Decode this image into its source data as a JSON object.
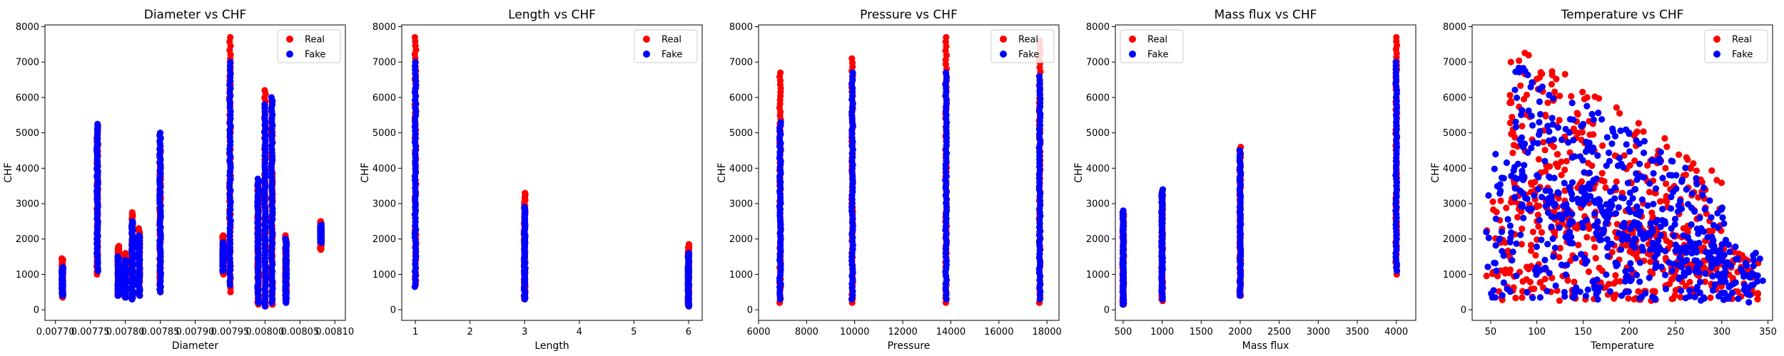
{
  "colors": {
    "real": "#ff0000",
    "fake": "#0000ff"
  },
  "legend_labels": [
    "Real",
    "Fake"
  ],
  "chart_data": [
    {
      "type": "scatter",
      "title": "Diameter vs CHF",
      "xlabel": "Diameter",
      "ylabel": "CHF",
      "xlim": [
        0.007685,
        0.008115
      ],
      "ylim": [
        -300,
        8050
      ],
      "xticks": [
        0.0077,
        0.00775,
        0.0078,
        0.00785,
        0.0079,
        0.00795,
        0.008,
        0.00805,
        0.0081
      ],
      "xtick_labels": [
        "0.00770",
        "0.00775",
        "0.00780",
        "0.00785",
        "0.00790",
        "0.00795",
        "0.00800",
        "0.00805",
        "0.00810"
      ],
      "yticks": [
        0,
        1000,
        2000,
        3000,
        4000,
        5000,
        6000,
        7000,
        8000
      ],
      "legend_loc": "top-right",
      "grid": false,
      "real_groups": [
        {
          "x": 0.00771,
          "ymin": 350,
          "ymax": 1450
        },
        {
          "x": 0.00776,
          "ymin": 1000,
          "ymax": 5200
        },
        {
          "x": 0.00779,
          "ymin": 400,
          "ymax": 1800
        },
        {
          "x": 0.0078,
          "ymin": 350,
          "ymax": 1600
        },
        {
          "x": 0.00781,
          "ymin": 300,
          "ymax": 2750
        },
        {
          "x": 0.00782,
          "ymin": 400,
          "ymax": 2300
        },
        {
          "x": 0.00785,
          "ymin": 500,
          "ymax": 4500
        },
        {
          "x": 0.00794,
          "ymin": 1000,
          "ymax": 2100
        },
        {
          "x": 0.00795,
          "ymin": 500,
          "ymax": 7700
        },
        {
          "x": 0.00799,
          "ymin": 150,
          "ymax": 3600
        },
        {
          "x": 0.008,
          "ymin": 100,
          "ymax": 6200
        },
        {
          "x": 0.00801,
          "ymin": 150,
          "ymax": 5900
        },
        {
          "x": 0.00803,
          "ymin": 200,
          "ymax": 2100
        },
        {
          "x": 0.00808,
          "ymin": 1700,
          "ymax": 2500
        }
      ],
      "fake_groups": [
        {
          "x": 0.00771,
          "ymin": 400,
          "ymax": 1200
        },
        {
          "x": 0.00776,
          "ymin": 1100,
          "ymax": 5250
        },
        {
          "x": 0.00779,
          "ymin": 400,
          "ymax": 1500
        },
        {
          "x": 0.0078,
          "ymin": 350,
          "ymax": 1400
        },
        {
          "x": 0.00781,
          "ymin": 300,
          "ymax": 2500
        },
        {
          "x": 0.00782,
          "ymin": 400,
          "ymax": 2100
        },
        {
          "x": 0.00785,
          "ymin": 500,
          "ymax": 5000
        },
        {
          "x": 0.00794,
          "ymin": 1100,
          "ymax": 1900
        },
        {
          "x": 0.00795,
          "ymin": 700,
          "ymax": 7000
        },
        {
          "x": 0.00799,
          "ymin": 200,
          "ymax": 3700
        },
        {
          "x": 0.008,
          "ymin": 100,
          "ymax": 5800
        },
        {
          "x": 0.00801,
          "ymin": 200,
          "ymax": 6000
        },
        {
          "x": 0.00803,
          "ymin": 200,
          "ymax": 2000
        },
        {
          "x": 0.00808,
          "ymin": 1900,
          "ymax": 2400
        }
      ]
    },
    {
      "type": "scatter",
      "title": "Length vs CHF",
      "xlabel": "Length",
      "ylabel": "CHF",
      "xlim": [
        0.75,
        6.25
      ],
      "ylim": [
        -300,
        8050
      ],
      "xticks": [
        1,
        2,
        3,
        4,
        5,
        6
      ],
      "xtick_labels": [
        "1",
        "2",
        "3",
        "4",
        "5",
        "6"
      ],
      "yticks": [
        0,
        1000,
        2000,
        3000,
        4000,
        5000,
        6000,
        7000,
        8000
      ],
      "legend_loc": "top-right",
      "grid": false,
      "real_groups": [
        {
          "x": 1,
          "ymin": 700,
          "ymax": 7700
        },
        {
          "x": 3,
          "ymin": 300,
          "ymax": 3300
        },
        {
          "x": 6,
          "ymin": 100,
          "ymax": 1850
        }
      ],
      "fake_groups": [
        {
          "x": 1,
          "ymin": 650,
          "ymax": 7000
        },
        {
          "x": 3,
          "ymin": 300,
          "ymax": 2900
        },
        {
          "x": 6,
          "ymin": 100,
          "ymax": 1600
        }
      ]
    },
    {
      "type": "scatter",
      "title": "Pressure vs CHF",
      "xlabel": "Pressure",
      "ylabel": "CHF",
      "xlim": [
        6000,
        18500
      ],
      "ylim": [
        -300,
        8050
      ],
      "xticks": [
        6000,
        8000,
        10000,
        12000,
        14000,
        16000,
        18000
      ],
      "xtick_labels": [
        "6000",
        "8000",
        "10000",
        "12000",
        "14000",
        "16000",
        "18000"
      ],
      "yticks": [
        0,
        1000,
        2000,
        3000,
        4000,
        5000,
        6000,
        7000,
        8000
      ],
      "legend_loc": "top-right",
      "grid": false,
      "real_groups": [
        {
          "x": 6900,
          "ymin": 200,
          "ymax": 6700
        },
        {
          "x": 9900,
          "ymin": 200,
          "ymax": 7100
        },
        {
          "x": 13800,
          "ymin": 200,
          "ymax": 7700
        },
        {
          "x": 17700,
          "ymin": 200,
          "ymax": 7600
        }
      ],
      "fake_groups": [
        {
          "x": 6900,
          "ymin": 300,
          "ymax": 5300
        },
        {
          "x": 9900,
          "ymin": 300,
          "ymax": 6700
        },
        {
          "x": 13800,
          "ymin": 300,
          "ymax": 6700
        },
        {
          "x": 17700,
          "ymin": 300,
          "ymax": 6600
        }
      ]
    },
    {
      "type": "scatter",
      "title": "Mass flux vs CHF",
      "xlabel": "Mass flux",
      "ylabel": "CHF",
      "xlim": [
        400,
        4250
      ],
      "ylim": [
        -300,
        8050
      ],
      "xticks": [
        500,
        1000,
        1500,
        2000,
        2500,
        3000,
        3500,
        4000
      ],
      "xtick_labels": [
        "500",
        "1000",
        "1500",
        "2000",
        "2500",
        "3000",
        "3500",
        "4000"
      ],
      "yticks": [
        0,
        1000,
        2000,
        3000,
        4000,
        5000,
        6000,
        7000,
        8000
      ],
      "legend_loc": "top-left",
      "grid": false,
      "real_groups": [
        {
          "x": 500,
          "ymin": 150,
          "ymax": 2700
        },
        {
          "x": 1000,
          "ymin": 250,
          "ymax": 3300
        },
        {
          "x": 2000,
          "ymin": 400,
          "ymax": 4600
        },
        {
          "x": 4000,
          "ymin": 1000,
          "ymax": 7700
        }
      ],
      "fake_groups": [
        {
          "x": 500,
          "ymin": 150,
          "ymax": 2800
        },
        {
          "x": 1000,
          "ymin": 300,
          "ymax": 3400
        },
        {
          "x": 2000,
          "ymin": 400,
          "ymax": 4500
        },
        {
          "x": 4000,
          "ymin": 1100,
          "ymax": 7000
        }
      ]
    },
    {
      "type": "scatter",
      "title": "Temperature vs CHF",
      "xlabel": "Temperature",
      "ylabel": "CHF",
      "xlim": [
        30,
        355
      ],
      "ylim": [
        -300,
        8050
      ],
      "xticks": [
        50,
        100,
        150,
        200,
        250,
        300,
        350
      ],
      "xtick_labels": [
        "50",
        "100",
        "150",
        "200",
        "250",
        "300",
        "350"
      ],
      "yticks": [
        0,
        1000,
        2000,
        3000,
        4000,
        5000,
        6000,
        7000,
        8000
      ],
      "legend_loc": "top-right",
      "grid": false,
      "real_bands": [
        {
          "x0": 45,
          "x1": 340,
          "ylo0": 250,
          "yhi0": 3400,
          "ylo1": 250,
          "yhi1": 1600
        },
        {
          "x0": 70,
          "x1": 300,
          "ylo0": 3000,
          "yhi0": 7700,
          "ylo1": 800,
          "yhi1": 3800
        }
      ],
      "fake_bands": [
        {
          "x0": 45,
          "x1": 345,
          "ylo0": 350,
          "yhi0": 4500,
          "ylo1": 200,
          "yhi1": 1600
        },
        {
          "x0": 75,
          "x1": 305,
          "ylo0": 3000,
          "yhi0": 7000,
          "ylo1": 700,
          "yhi1": 3400
        }
      ]
    }
  ]
}
